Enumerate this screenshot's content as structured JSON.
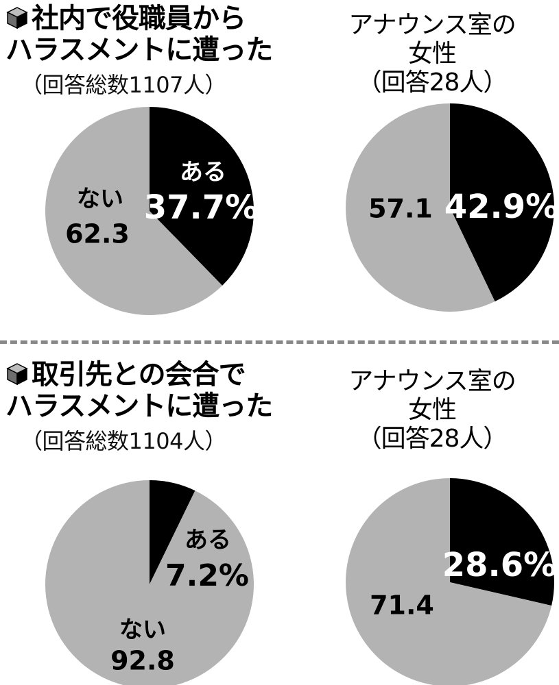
{
  "colors": {
    "yes": "#000000",
    "no": "#b3b3b3",
    "divider": "#888888"
  },
  "chart_data": [
    {
      "type": "pie",
      "group_title_lines": [
        "社内で役職員から",
        "ハラスメントに遭った"
      ],
      "subtitle": "（回答総数1107人）",
      "slices": [
        {
          "label": "ある",
          "value": 37.7,
          "value_text": "37.7%",
          "color": "#000000"
        },
        {
          "label": "ない",
          "value": 62.3,
          "value_text": "62.3",
          "color": "#b3b3b3"
        }
      ]
    },
    {
      "type": "pie",
      "title_lines": [
        "アナウンス室の",
        "女性"
      ],
      "subtitle": "（回答28人）",
      "slices": [
        {
          "label": "",
          "value": 42.9,
          "value_text": "42.9%",
          "color": "#000000"
        },
        {
          "label": "",
          "value": 57.1,
          "value_text": "57.1",
          "color": "#b3b3b3"
        }
      ]
    },
    {
      "type": "pie",
      "group_title_lines": [
        "取引先との会合で",
        "ハラスメントに遭った"
      ],
      "subtitle": "（回答総数1104人）",
      "slices": [
        {
          "label": "ある",
          "value": 7.2,
          "value_text": "7.2%",
          "color": "#000000"
        },
        {
          "label": "ない",
          "value": 92.8,
          "value_text": "92.8",
          "color": "#b3b3b3"
        }
      ]
    },
    {
      "type": "pie",
      "title_lines": [
        "アナウンス室の",
        "女性"
      ],
      "subtitle": "（回答28人）",
      "slices": [
        {
          "label": "",
          "value": 28.6,
          "value_text": "28.6%",
          "color": "#000000"
        },
        {
          "label": "",
          "value": 71.4,
          "value_text": "71.4",
          "color": "#b3b3b3"
        }
      ]
    }
  ]
}
